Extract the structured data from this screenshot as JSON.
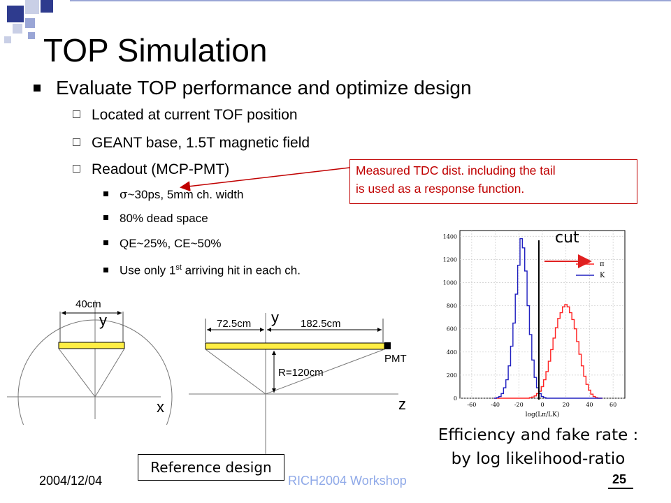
{
  "slide": {
    "title": "TOP Simulation",
    "main_bullet": "Evaluate TOP performance and optimize design",
    "sub_bullets": [
      "Located at current TOF position",
      "GEANT base, 1.5T magnetic field",
      "Readout (MCP-PMT)"
    ],
    "subsub_bullets": [
      "~30ps,  5mm ch. width",
      "80% dead space",
      "QE~25%, CE~50%"
    ],
    "sigma_symbol": "σ",
    "last_subsub_prefix": "Use only 1",
    "last_subsub_sup": "st",
    "last_subsub_suffix": " arriving hit in each ch.",
    "callout_line1": "Measured TDC dist. including the tail",
    "callout_line2": "is used as a response function.",
    "reference_label": "Reference design",
    "caption_line1": "Efficiency and fake rate :",
    "caption_line2": "by log likelihood-ratio",
    "cut_label": "cut",
    "footer_date": "2004/12/04",
    "footer_workshop": "RICH2004 Workshop",
    "footer_page": "25",
    "colors": {
      "callout": "#c00000",
      "bar": "#ffee44",
      "pion": "#ff2020",
      "kaon": "#2020c0",
      "workshop": "#8fa9e8"
    }
  },
  "diagram_left": {
    "width_label": "40cm",
    "axis_y": "y",
    "axis_x": "x"
  },
  "diagram_right": {
    "left_len": "72.5cm",
    "right_len": "182.5cm",
    "radius": "R=120cm",
    "pmt": "PMT",
    "axis_y": "y",
    "axis_z": "z"
  },
  "chart_data": {
    "type": "line",
    "xlabel": "log(Lπ/LK)",
    "xlim": [
      -70,
      70
    ],
    "ylim": [
      0,
      1450
    ],
    "xticks": [
      -60,
      -40,
      -20,
      0,
      20,
      40,
      60
    ],
    "yticks": [
      0,
      200,
      400,
      600,
      800,
      1000,
      1200,
      1400
    ],
    "legend_placement": "top-right",
    "grid": true,
    "cut_x": -3,
    "x": [
      -40,
      -38,
      -36,
      -34,
      -32,
      -30,
      -28,
      -26,
      -24,
      -22,
      -20,
      -18,
      -16,
      -14,
      -12,
      -10,
      -8,
      -6,
      -4,
      -2,
      0,
      2,
      4,
      6,
      8,
      10,
      12,
      14,
      16,
      18,
      20,
      22,
      24,
      26,
      28,
      30,
      32,
      34,
      36,
      38,
      40,
      42,
      44,
      46,
      48,
      50
    ],
    "series": [
      {
        "name": "π",
        "values": [
          0,
          0,
          0,
          0,
          0,
          0,
          0,
          0,
          0,
          0,
          0,
          0,
          0,
          0,
          0,
          5,
          10,
          20,
          40,
          60,
          100,
          160,
          230,
          320,
          420,
          520,
          610,
          690,
          740,
          790,
          810,
          790,
          740,
          680,
          600,
          490,
          380,
          280,
          190,
          120,
          70,
          35,
          15,
          5,
          0,
          0
        ]
      },
      {
        "name": "K",
        "values": [
          0,
          5,
          15,
          40,
          90,
          160,
          280,
          450,
          650,
          900,
          1150,
          1380,
          1300,
          1100,
          800,
          550,
          330,
          180,
          90,
          40,
          15,
          5,
          0,
          0,
          0,
          0,
          0,
          0,
          0,
          0,
          0,
          0,
          0,
          0,
          0,
          0,
          0,
          0,
          0,
          0,
          0,
          0,
          0,
          0,
          0,
          0
        ]
      }
    ]
  }
}
